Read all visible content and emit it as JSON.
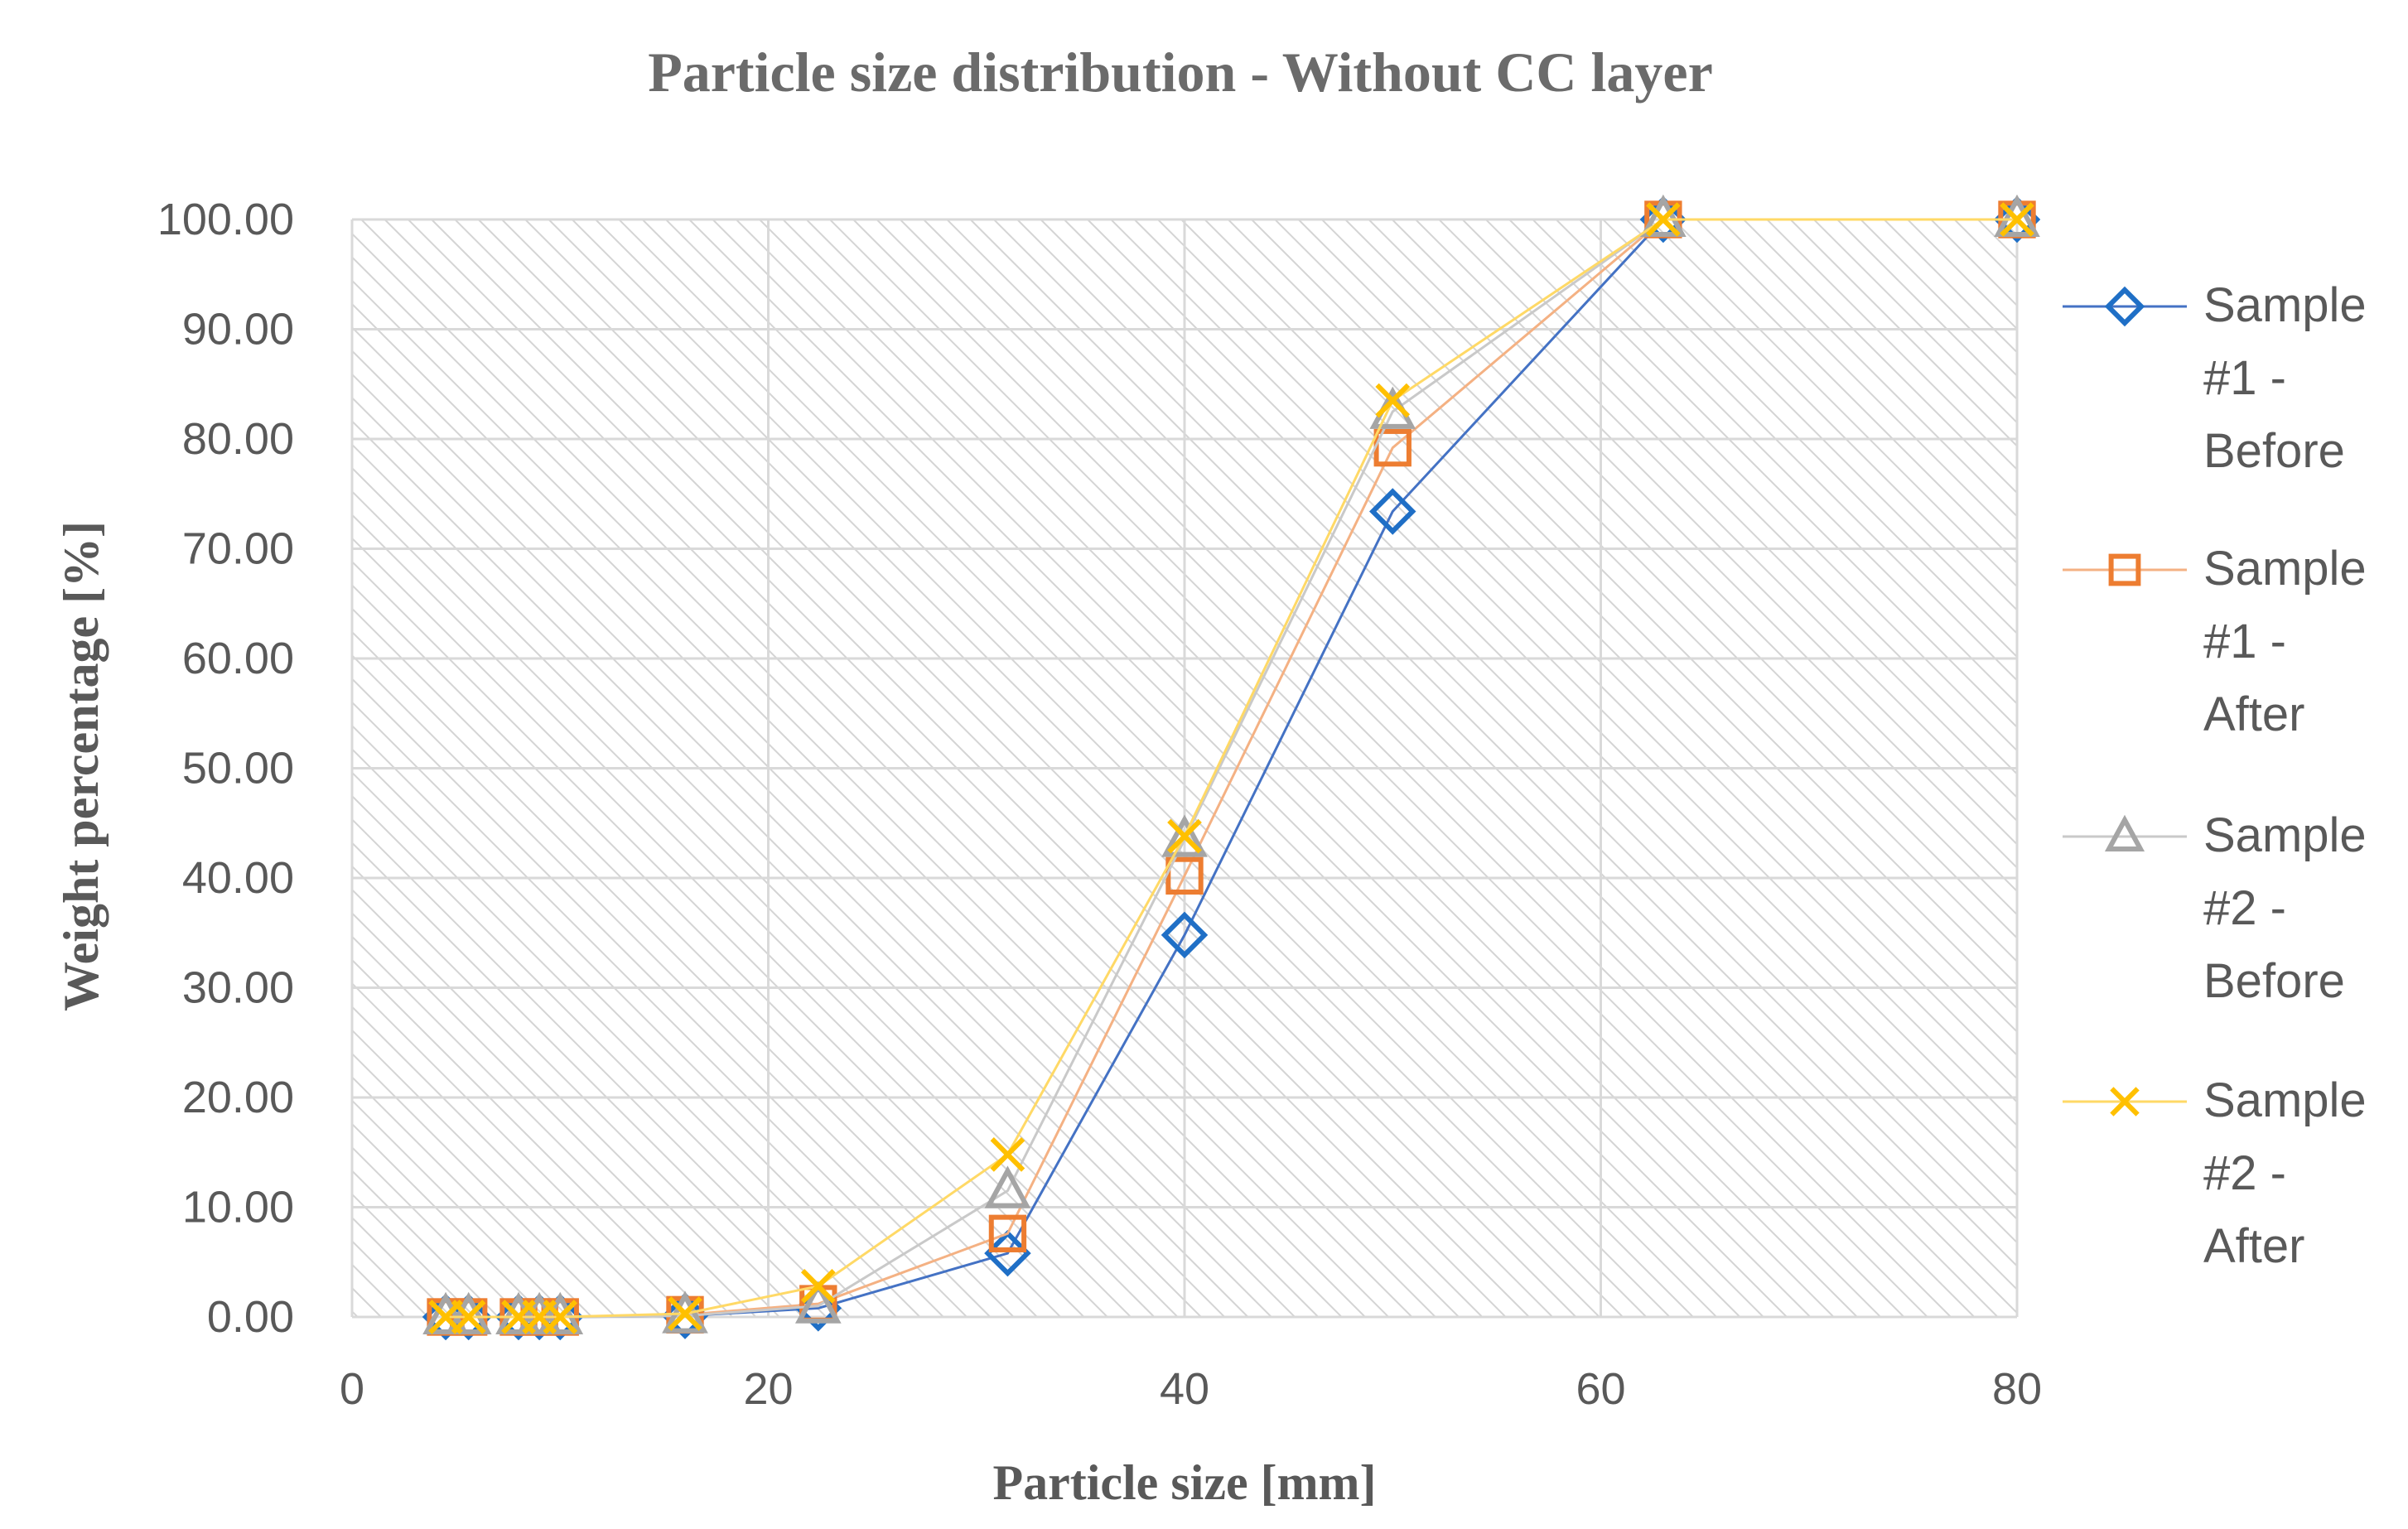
{
  "chart_data": {
    "type": "scatter",
    "title": "Particle size distribution - Without CC layer",
    "xlabel": "Particle size [mm]",
    "ylabel": "Weight percentage [%]",
    "xlim": [
      0,
      80
    ],
    "ylim": [
      0,
      100
    ],
    "x_ticks": [
      "0",
      "20",
      "40",
      "60",
      "80"
    ],
    "y_ticks": [
      "0.00",
      "10.00",
      "20.00",
      "30.00",
      "40.00",
      "50.00",
      "60.00",
      "70.00",
      "80.00",
      "90.00",
      "100.00"
    ],
    "grid": true,
    "legend_position": "right",
    "x": [
      4.5,
      5.6,
      8,
      9,
      10,
      16,
      22.4,
      31.5,
      40,
      50,
      63,
      80
    ],
    "series": [
      {
        "name": "Sample #1 - Before",
        "legend_lines": [
          "Sample",
          "#1 -",
          "Before"
        ],
        "marker": "diamond",
        "color": "#4472C4",
        "marker_color": "#1F6FC6",
        "values": [
          0,
          0,
          0,
          0,
          0,
          0.1,
          0.8,
          5.8,
          34.8,
          73.4,
          100,
          100
        ]
      },
      {
        "name": "Sample #1 - After",
        "legend_lines": [
          "Sample",
          "#1 -",
          "After"
        ],
        "marker": "square",
        "color": "#F4B183",
        "marker_color": "#ED7D31",
        "values": [
          0,
          0,
          0,
          0,
          0,
          0.2,
          1.2,
          7.6,
          40.2,
          79.2,
          100,
          100
        ]
      },
      {
        "name": "Sample #2 - Before",
        "legend_lines": [
          "Sample",
          "#2 -",
          "Before"
        ],
        "marker": "triangle",
        "color": "#C9C9C9",
        "marker_color": "#A5A5A5",
        "values": [
          0,
          0,
          0,
          0,
          0,
          0.1,
          1.0,
          11.5,
          43.5,
          82.5,
          100,
          100
        ]
      },
      {
        "name": "Sample #2 - After",
        "legend_lines": [
          "Sample",
          "#2 -",
          "After"
        ],
        "marker": "x",
        "color": "#FFD966",
        "marker_color": "#FFC000",
        "values": [
          0,
          0,
          0,
          0,
          0,
          0.3,
          2.8,
          14.8,
          43.8,
          83.5,
          100,
          100
        ]
      }
    ]
  }
}
